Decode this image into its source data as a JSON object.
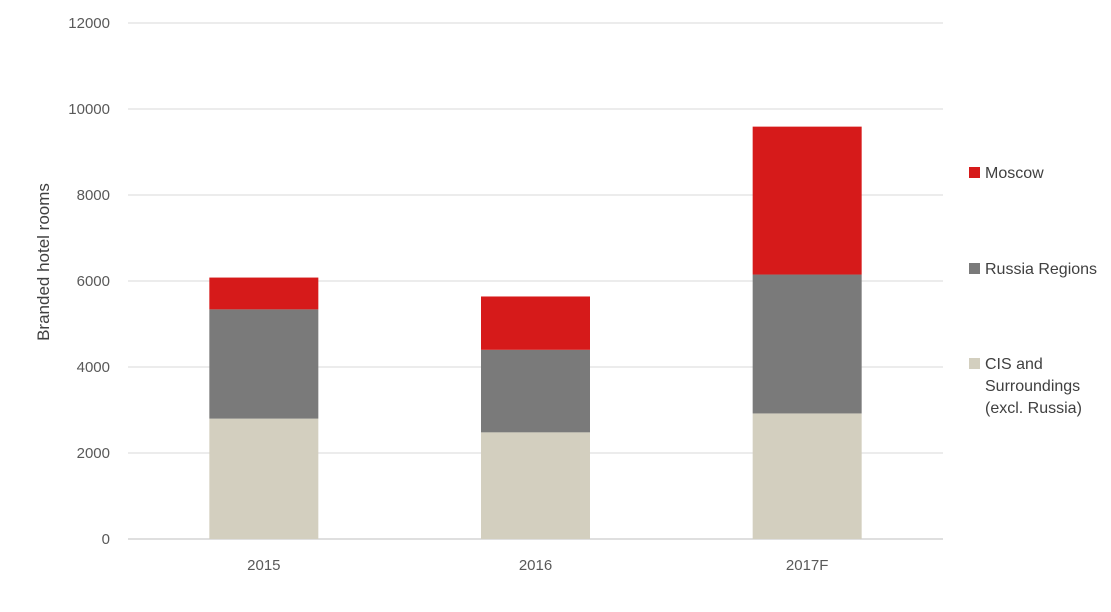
{
  "chart_data": {
    "type": "bar",
    "stacked": true,
    "categories": [
      "2015",
      "2016",
      "2017F"
    ],
    "series": [
      {
        "name": "CIS and Surroundings (excl. Russia)",
        "legend_lines": [
          "CIS and",
          "Surroundings",
          "(excl. Russia)"
        ],
        "color": "#d3cfbf",
        "values": [
          2800,
          2480,
          2920
        ]
      },
      {
        "name": "Russia Regions",
        "legend_lines": [
          "Russia Regions"
        ],
        "color": "#7a7a7a",
        "values": [
          2540,
          1920,
          3230
        ]
      },
      {
        "name": "Moscow",
        "legend_lines": [
          "Moscow"
        ],
        "color": "#d61a1a",
        "values": [
          740,
          1240,
          3440
        ]
      }
    ],
    "title": "",
    "xlabel": "",
    "ylabel": "Branded hotel rooms",
    "ylim": [
      0,
      12000
    ],
    "yticks": [
      "0",
      "2000",
      "4000",
      "6000",
      "8000",
      "10000",
      "12000"
    ],
    "grid": true,
    "legend_position": "right",
    "legend_order": [
      "Moscow",
      "Russia Regions",
      "CIS and Surroundings (excl. Russia)"
    ]
  }
}
